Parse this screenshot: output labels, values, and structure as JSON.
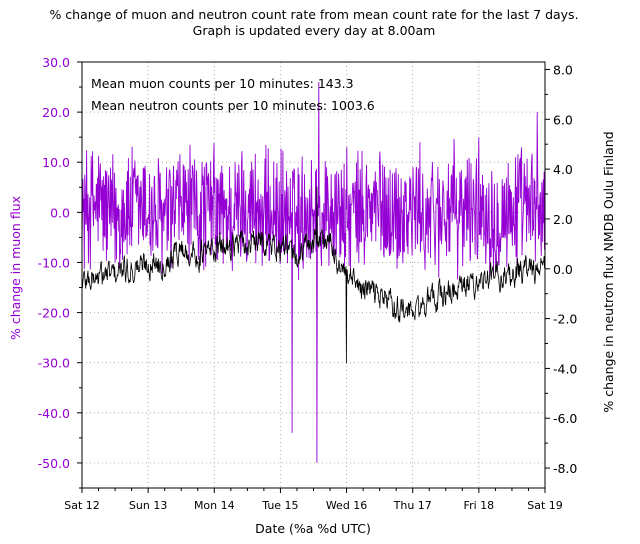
{
  "chart_data": {
    "type": "line",
    "title_line1": "% change of muon and neutron count rate from mean count rate for the last 7 days.",
    "title_line2": "Graph is updated every day at 8.00am",
    "xlabel": "Date (%a %d UTC)",
    "ylabel_left": "% change in muon flux",
    "ylabel_right": "% change in neutron flux NMDB Oulu Finland",
    "x_ticks": [
      "Sat 12",
      "Sun 13",
      "Mon 14",
      "Tue 15",
      "Wed 16",
      "Thu 17",
      "Fri 18",
      "Sat 19"
    ],
    "xlim_days": [
      0,
      7
    ],
    "y_left": {
      "lim": [
        -55.0,
        30.0
      ],
      "ticks": [
        30.0,
        20.0,
        10.0,
        0.0,
        -10.0,
        -20.0,
        -30.0,
        -40.0,
        -50.0
      ],
      "tick_labels": [
        "30.0",
        "20.0",
        "10.0",
        "0.0",
        "-10.0",
        "-20.0",
        "-30.0",
        "-40.0",
        "-50.0"
      ]
    },
    "y_right": {
      "lim": [
        -8.8,
        8.3
      ],
      "ticks": [
        8.0,
        6.0,
        4.0,
        2.0,
        0.0,
        -2.0,
        -4.0,
        -6.0,
        -8.0
      ],
      "tick_labels": [
        "8.0",
        "6.0",
        "4.0",
        "2.0",
        "0.0",
        "-2.0",
        "-4.0",
        "-6.0",
        "-8.0"
      ]
    },
    "grid": true,
    "annotations": [
      "Mean muon counts per 10 minutes: 143.3",
      "Mean neutron counts per 10 minutes: 1003.6"
    ],
    "series": [
      {
        "axis": "left",
        "color": "#9400d3",
        "x_days": [
          0.0,
          0.25,
          0.5,
          0.75,
          1.0,
          1.25,
          1.5,
          1.75,
          2.0,
          2.25,
          2.5,
          2.75,
          3.0,
          3.25,
          3.5,
          3.6,
          3.75,
          4.0,
          4.25,
          4.5,
          4.75,
          5.0,
          5.25,
          5.5,
          5.75,
          6.0,
          6.25,
          6.5,
          6.75,
          7.0
        ],
        "values": [
          0.0,
          2.0,
          -1.0,
          1.0,
          0.5,
          -2.0,
          1.5,
          0.0,
          1.0,
          -1.0,
          2.0,
          -0.5,
          0.0,
          -1.5,
          1.0,
          -2.0,
          0.5,
          -1.0,
          0.0,
          1.0,
          -0.5,
          0.5,
          -1.0,
          1.0,
          0.0,
          1.5,
          -0.5,
          1.0,
          0.0,
          0.5
        ],
        "noise_amplitude": 12,
        "spikes": [
          {
            "day": 3.18,
            "value": -44.0
          },
          {
            "day": 3.55,
            "value": -50.0
          },
          {
            "day": 3.58,
            "value": 26.0
          },
          {
            "day": 6.88,
            "value": 20.0
          }
        ]
      },
      {
        "axis": "right",
        "color": "#000000",
        "x_days": [
          0.0,
          0.25,
          0.5,
          0.75,
          1.0,
          1.25,
          1.5,
          1.75,
          2.0,
          2.25,
          2.5,
          2.75,
          3.0,
          3.25,
          3.5,
          3.6,
          3.75,
          4.0,
          4.25,
          4.5,
          4.75,
          5.0,
          5.25,
          5.5,
          5.75,
          6.0,
          6.25,
          6.5,
          6.75,
          7.0
        ],
        "values": [
          -0.5,
          -0.3,
          -0.2,
          0.0,
          0.2,
          0.3,
          0.8,
          0.5,
          0.8,
          1.0,
          0.9,
          1.1,
          0.8,
          0.5,
          1.2,
          1.3,
          1.0,
          -0.5,
          -0.8,
          -1.0,
          -1.5,
          -1.8,
          -1.3,
          -1.0,
          -0.8,
          -0.5,
          -0.3,
          -0.2,
          0.0,
          0.0
        ],
        "noise_amplitude": 0.6,
        "spikes": [
          {
            "day": 3.55,
            "value": 3.3
          },
          {
            "day": 4.0,
            "value": -3.8
          }
        ]
      }
    ]
  }
}
